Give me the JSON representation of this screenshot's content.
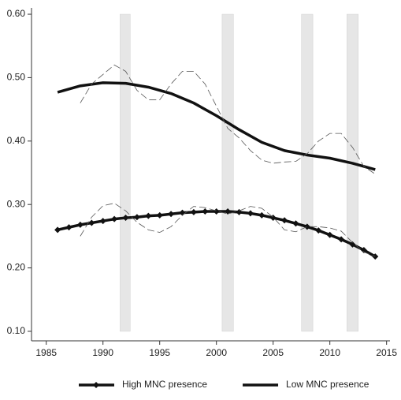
{
  "chart_data": {
    "type": "line",
    "xlim": [
      1983.7,
      2015.3
    ],
    "ylim": [
      0.085,
      0.61
    ],
    "xticks": [
      1985,
      1990,
      1995,
      2000,
      2005,
      2010,
      2015
    ],
    "yticks": [
      {
        "value": 0.1,
        "label": "0.10"
      },
      {
        "value": 0.2,
        "label": "0.20"
      },
      {
        "value": 0.3,
        "label": "0.30"
      },
      {
        "value": 0.4,
        "label": "0.40"
      },
      {
        "value": 0.5,
        "label": "0.50"
      },
      {
        "value": 0.6,
        "label": "0.60"
      }
    ],
    "shaded": [
      [
        1991.5,
        1992.4
      ],
      [
        2000.5,
        2001.5
      ],
      [
        2007.5,
        2008.5
      ],
      [
        2011.5,
        2012.5
      ]
    ],
    "shaded_color": "#e6e6e6",
    "series": [
      {
        "name": "High MNC presence",
        "color": "#111111",
        "width": 3.5,
        "marker": "diamond",
        "x": [
          1986,
          1987,
          1988,
          1989,
          1990,
          1991,
          1992,
          1993,
          1994,
          1995,
          1996,
          1997,
          1998,
          1999,
          2000,
          2001,
          2002,
          2003,
          2004,
          2005,
          2006,
          2007,
          2008,
          2009,
          2010,
          2011,
          2012,
          2013,
          2014
        ],
        "values": [
          0.26,
          0.264,
          0.268,
          0.271,
          0.274,
          0.277,
          0.279,
          0.28,
          0.282,
          0.283,
          0.285,
          0.287,
          0.288,
          0.289,
          0.289,
          0.289,
          0.288,
          0.286,
          0.283,
          0.279,
          0.275,
          0.27,
          0.265,
          0.259,
          0.252,
          0.245,
          0.237,
          0.228,
          0.218
        ]
      },
      {
        "name": "Low MNC presence",
        "color": "#111111",
        "width": 3.5,
        "x": [
          1986,
          1988,
          1990,
          1992,
          1994,
          1996,
          1998,
          2000,
          2002,
          2004,
          2006,
          2008,
          2010,
          2012,
          2014
        ],
        "values": [
          0.477,
          0.487,
          0.492,
          0.491,
          0.485,
          0.475,
          0.46,
          0.44,
          0.418,
          0.398,
          0.385,
          0.378,
          0.373,
          0.365,
          0.355
        ]
      },
      {
        "color": "#555555",
        "width": 0.8,
        "dash": true,
        "x": [
          1988,
          1989,
          1990,
          1991,
          1992,
          1993,
          1994,
          1995,
          1996,
          1997,
          1998,
          1999,
          2000,
          2001,
          2002,
          2003,
          2004,
          2005,
          2006,
          2007,
          2008,
          2009,
          2010,
          2011,
          2012,
          2013,
          2014
        ],
        "values": [
          0.46,
          0.49,
          0.505,
          0.52,
          0.51,
          0.48,
          0.465,
          0.465,
          0.49,
          0.51,
          0.51,
          0.49,
          0.455,
          0.42,
          0.405,
          0.385,
          0.37,
          0.365,
          0.367,
          0.368,
          0.38,
          0.4,
          0.412,
          0.412,
          0.39,
          0.36,
          0.348
        ]
      },
      {
        "color": "#555555",
        "width": 0.8,
        "dash": true,
        "x": [
          1988,
          1989,
          1990,
          1991,
          1992,
          1993,
          1994,
          1995,
          1996,
          1997,
          1998,
          1999,
          2000,
          2001,
          2002,
          2003,
          2004,
          2005,
          2006,
          2007,
          2008,
          2009,
          2010,
          2011,
          2012,
          2013,
          2014
        ],
        "values": [
          0.25,
          0.28,
          0.298,
          0.302,
          0.29,
          0.272,
          0.26,
          0.256,
          0.265,
          0.283,
          0.297,
          0.295,
          0.29,
          0.285,
          0.29,
          0.297,
          0.294,
          0.28,
          0.26,
          0.257,
          0.265,
          0.265,
          0.263,
          0.258,
          0.24,
          0.225,
          0.218
        ]
      }
    ]
  }
}
